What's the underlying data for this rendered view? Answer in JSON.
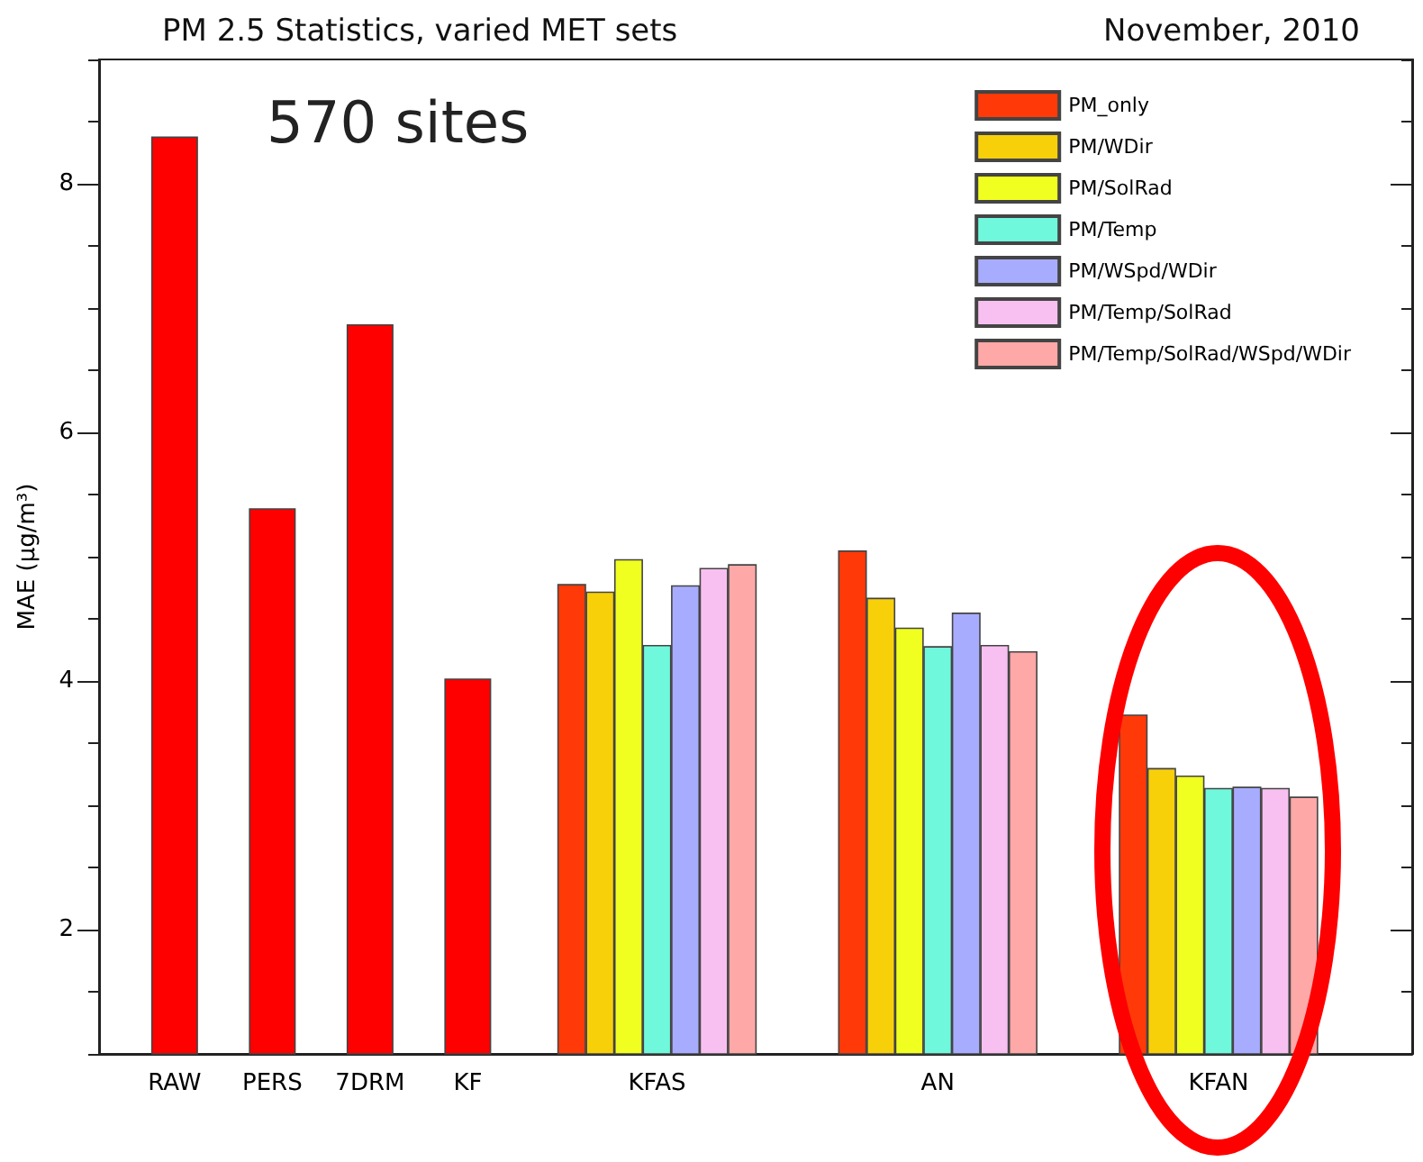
{
  "chart_data": {
    "type": "bar",
    "title": "PM 2.5 Statistics, varied MET sets",
    "subtitle": "November, 2010",
    "ylabel": "MAE (µg/m³)",
    "annotations": [
      "570 sites"
    ],
    "categories": [
      "RAW",
      "PERS",
      "7DRM",
      "KF",
      "KFAS",
      "AN",
      "KFAN"
    ],
    "series": [
      {
        "color": "#ff0000",
        "values": [
          8.38,
          5.39,
          6.87,
          4.02,
          null,
          null,
          null
        ]
      },
      {
        "name": "PM_only",
        "color": "#ff3a08",
        "values": [
          null,
          null,
          null,
          null,
          4.78,
          5.05,
          3.73
        ]
      },
      {
        "name": "PM/WDir",
        "color": "#f8d00a",
        "values": [
          null,
          null,
          null,
          null,
          4.72,
          4.67,
          3.3
        ]
      },
      {
        "name": "PM/SolRad",
        "color": "#f0ff20",
        "values": [
          null,
          null,
          null,
          null,
          4.98,
          4.43,
          3.24
        ]
      },
      {
        "name": "PM/Temp",
        "color": "#70f8dc",
        "values": [
          null,
          null,
          null,
          null,
          4.29,
          4.28,
          3.14
        ]
      },
      {
        "name": "PM/WSpd/WDir",
        "color": "#a8acff",
        "values": [
          null,
          null,
          null,
          null,
          4.77,
          4.55,
          3.15
        ]
      },
      {
        "name": "PM/Temp/SolRad",
        "color": "#f8c0f0",
        "values": [
          null,
          null,
          null,
          null,
          4.91,
          4.29,
          3.14
        ]
      },
      {
        "name": "PM/Temp/SolRad/WSpd/WDir",
        "color": "#ffa8a8",
        "values": [
          null,
          null,
          null,
          null,
          4.94,
          4.24,
          3.07
        ]
      }
    ],
    "ylim": [
      1,
      9
    ],
    "yticks": [
      2,
      4,
      6,
      8
    ],
    "grid": false,
    "legend": "top right"
  }
}
